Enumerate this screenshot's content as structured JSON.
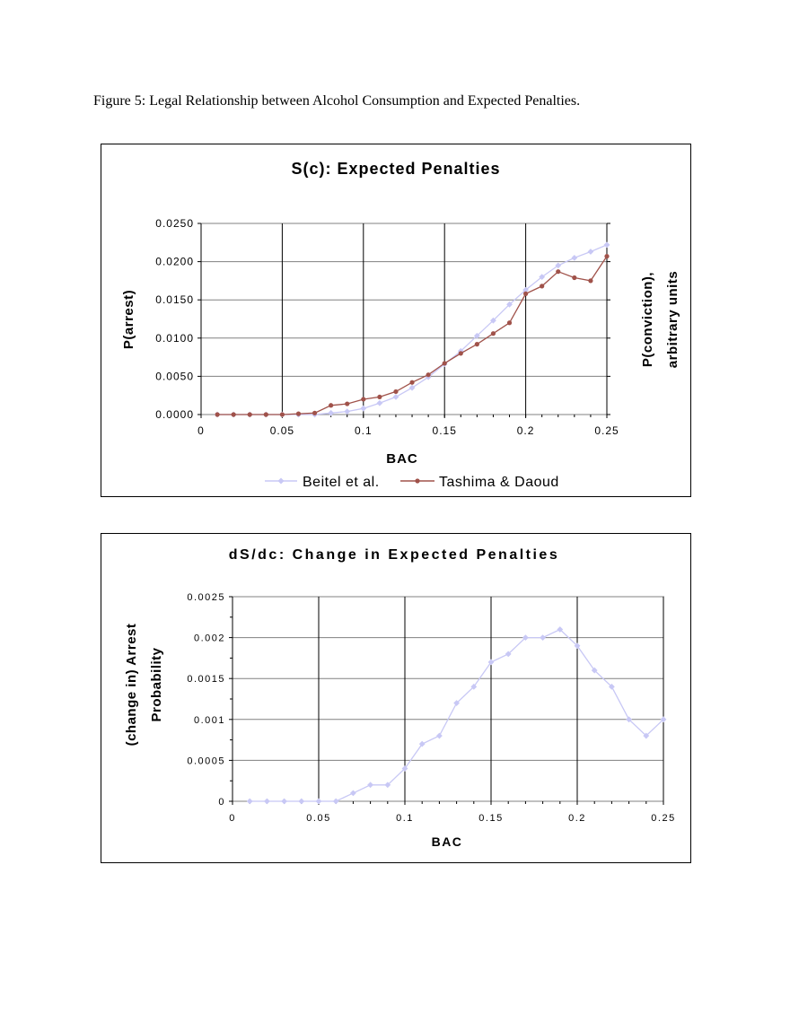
{
  "caption": "Figure 5: Legal Relationship between Alcohol Consumption and Expected Penalties.",
  "chart_data": [
    {
      "type": "line",
      "title": "S(c): Expected Penalties",
      "xlabel": "BAC",
      "ylabel": "P(arrest)",
      "y2label_lines": [
        "P(conviction),",
        "arbitrary units"
      ],
      "xlim": [
        0,
        0.25
      ],
      "ylim": [
        0,
        0.025
      ],
      "x_ticks": [
        0,
        0.05,
        0.1,
        0.15,
        0.2,
        0.25
      ],
      "x_tick_labels": [
        "0",
        "0.05",
        "0.1",
        "0.15",
        "0.2",
        "0.25"
      ],
      "y_ticks": [
        0,
        0.005,
        0.01,
        0.015,
        0.02,
        0.025
      ],
      "y_tick_labels": [
        "0.0000",
        "0.0050",
        "0.0100",
        "0.0150",
        "0.0200",
        "0.0250"
      ],
      "grid": "both",
      "legend": "bottom",
      "series": [
        {
          "name": "Beitel et al.",
          "color": "#c8c8f5",
          "marker": "diamond",
          "x": [
            0.01,
            0.02,
            0.03,
            0.04,
            0.05,
            0.06,
            0.07,
            0.08,
            0.09,
            0.1,
            0.11,
            0.12,
            0.13,
            0.14,
            0.15,
            0.16,
            0.17,
            0.18,
            0.19,
            0.2,
            0.21,
            0.22,
            0.23,
            0.24,
            0.25
          ],
          "values": [
            0,
            0,
            0,
            0,
            0,
            0,
            0,
            0.0002,
            0.0004,
            0.0008,
            0.0015,
            0.0023,
            0.0035,
            0.0049,
            0.0066,
            0.0083,
            0.0103,
            0.0123,
            0.0144,
            0.0163,
            0.018,
            0.0195,
            0.0205,
            0.0213,
            0.0222
          ]
        },
        {
          "name": "Tashima & Daoud",
          "color": "#a0524a",
          "marker": "circle",
          "x": [
            0.01,
            0.02,
            0.03,
            0.04,
            0.05,
            0.06,
            0.07,
            0.08,
            0.09,
            0.1,
            0.11,
            0.12,
            0.13,
            0.14,
            0.15,
            0.16,
            0.17,
            0.18,
            0.19,
            0.2,
            0.21,
            0.22,
            0.23,
            0.24,
            0.25
          ],
          "values": [
            0,
            0,
            0,
            0,
            0,
            0.0001,
            0.0002,
            0.0012,
            0.0014,
            0.002,
            0.0023,
            0.003,
            0.0042,
            0.0052,
            0.0067,
            0.008,
            0.0092,
            0.0106,
            0.012,
            0.0158,
            0.0168,
            0.0187,
            0.0179,
            0.0175,
            0.0207
          ]
        }
      ]
    },
    {
      "type": "line",
      "title": "dS/dc: Change in Expected Penalties",
      "xlabel": "BAC",
      "ylabel_lines": [
        "(change in) Arrest",
        "Probability"
      ],
      "xlim": [
        0,
        0.25
      ],
      "ylim": [
        0,
        0.0025
      ],
      "x_ticks": [
        0,
        0.05,
        0.1,
        0.15,
        0.2,
        0.25
      ],
      "x_tick_labels": [
        "0",
        "0.05",
        "0.1",
        "0.15",
        "0.2",
        "0.25"
      ],
      "y_ticks": [
        0,
        0.0005,
        0.001,
        0.0015,
        0.002,
        0.0025
      ],
      "y_tick_labels": [
        "0",
        "0.0005",
        "0.001",
        "0.0015",
        "0.002",
        "0.0025"
      ],
      "grid": "both",
      "series": [
        {
          "color": "#c8c8f5",
          "marker": "diamond",
          "x": [
            0.01,
            0.02,
            0.03,
            0.04,
            0.05,
            0.06,
            0.07,
            0.08,
            0.09,
            0.1,
            0.11,
            0.12,
            0.13,
            0.14,
            0.15,
            0.16,
            0.17,
            0.18,
            0.19,
            0.2,
            0.21,
            0.22,
            0.23,
            0.24,
            0.25
          ],
          "values": [
            0,
            0,
            0,
            0,
            0,
            0,
            0.0001,
            0.0002,
            0.0002,
            0.0004,
            0.0007,
            0.0008,
            0.0012,
            0.0014,
            0.0017,
            0.0018,
            0.002,
            0.002,
            0.0021,
            0.0019,
            0.0016,
            0.0014,
            0.001,
            0.0008,
            0.001
          ]
        }
      ]
    }
  ]
}
